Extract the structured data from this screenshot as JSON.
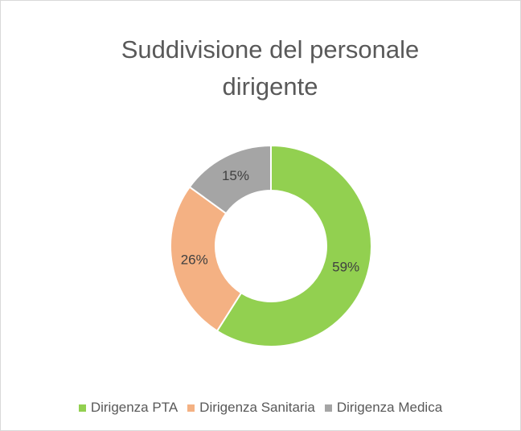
{
  "chart_data": {
    "type": "donut",
    "title": "Suddivisione del personale dirigente",
    "categories": [
      "Dirigenza PTA",
      "Dirigenza Sanitaria",
      "Dirigenza Medica"
    ],
    "values": [
      59,
      26,
      15
    ],
    "value_labels": [
      "59%",
      "26%",
      "15%"
    ],
    "colors": [
      "#92d050",
      "#f4b183",
      "#a5a5a5"
    ],
    "legend": "bottom"
  }
}
